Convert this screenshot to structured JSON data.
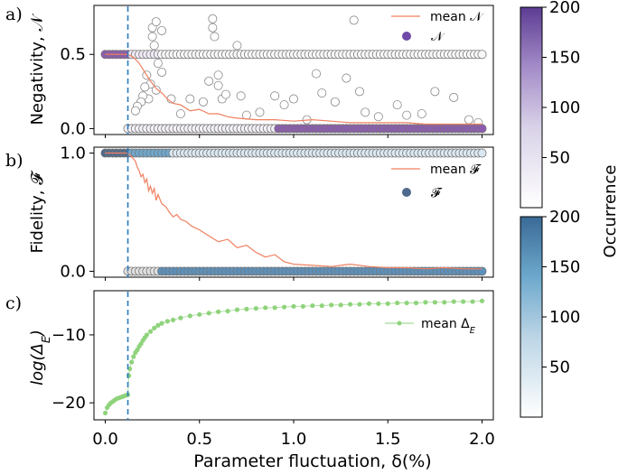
{
  "figure": {
    "xlabel": "Parameter fluctuation, δ(%)",
    "x_ticks": [
      "0.0",
      "0.5",
      "1.0",
      "1.5",
      "2.0"
    ],
    "x_tick_values": [
      0.0,
      0.5,
      1.0,
      1.5,
      2.0
    ],
    "threshold_x": 0.12
  },
  "colorbars": {
    "label": "Occurrence",
    "purple": {
      "ticks": [
        "200",
        "150",
        "100",
        "50"
      ],
      "tick_values": [
        200,
        150,
        100,
        50
      ],
      "range": [
        0,
        200
      ],
      "colors": [
        "#ffffff",
        "#5c3c93"
      ]
    },
    "blue": {
      "ticks": [
        "200",
        "150",
        "100",
        "50"
      ],
      "tick_values": [
        200,
        150,
        100,
        50
      ],
      "range": [
        0,
        200
      ],
      "colors": [
        "#ffffff",
        "#3a6a96"
      ]
    }
  },
  "chart_data": [
    {
      "type": "scatter",
      "panel_label": "a)",
      "ylabel": "Negativity, 𝒩",
      "ylim": [
        -0.04,
        0.83
      ],
      "y_ticks": [
        "0.5",
        "0.0"
      ],
      "y_tick_values": [
        0.5,
        0.0
      ],
      "xlim": [
        -0.06,
        2.06
      ],
      "legend": [
        "mean 𝒩",
        "𝒩"
      ],
      "mean_series": {
        "name": "mean 𝒩",
        "color": "#f08060",
        "x": [
          0.0,
          0.04,
          0.08,
          0.12,
          0.15,
          0.18,
          0.21,
          0.24,
          0.27,
          0.3,
          0.33,
          0.36,
          0.4,
          0.45,
          0.5,
          0.55,
          0.6,
          0.65,
          0.7,
          0.8,
          0.9,
          1.0,
          1.1,
          1.2,
          1.3,
          1.4,
          1.5,
          1.6,
          1.7,
          1.8,
          1.9,
          2.0
        ],
        "y": [
          0.5,
          0.5,
          0.5,
          0.5,
          0.48,
          0.44,
          0.38,
          0.32,
          0.27,
          0.24,
          0.2,
          0.17,
          0.16,
          0.12,
          0.13,
          0.1,
          0.1,
          0.08,
          0.07,
          0.06,
          0.06,
          0.05,
          0.06,
          0.05,
          0.04,
          0.04,
          0.04,
          0.04,
          0.03,
          0.03,
          0.03,
          0.03
        ]
      },
      "upper_band_y": 0.5,
      "lower_band_y": 0.0,
      "scatter_outliers": [
        [
          0.25,
          0.62
        ],
        [
          0.25,
          0.68
        ],
        [
          0.27,
          0.72
        ],
        [
          0.26,
          0.56
        ],
        [
          0.28,
          0.44
        ],
        [
          0.24,
          0.3
        ],
        [
          0.27,
          0.26
        ],
        [
          0.23,
          0.2
        ],
        [
          0.3,
          0.38
        ],
        [
          0.3,
          0.66
        ],
        [
          0.22,
          0.36
        ],
        [
          0.21,
          0.28
        ],
        [
          0.2,
          0.22
        ],
        [
          0.19,
          0.18
        ],
        [
          0.17,
          0.15
        ],
        [
          0.16,
          0.12
        ],
        [
          0.35,
          0.2
        ],
        [
          0.4,
          0.1
        ],
        [
          0.45,
          0.2
        ],
        [
          0.52,
          0.18
        ],
        [
          0.55,
          0.32
        ],
        [
          0.57,
          0.74
        ],
        [
          0.57,
          0.68
        ],
        [
          0.58,
          0.62
        ],
        [
          0.6,
          0.36
        ],
        [
          0.6,
          0.29
        ],
        [
          0.62,
          0.2
        ],
        [
          0.64,
          0.23
        ],
        [
          0.7,
          0.56
        ],
        [
          0.72,
          0.22
        ],
        [
          0.75,
          0.09
        ],
        [
          0.82,
          0.11
        ],
        [
          0.9,
          0.22
        ],
        [
          0.95,
          0.16
        ],
        [
          1.0,
          0.2
        ],
        [
          1.05,
          0.5
        ],
        [
          1.07,
          0.06
        ],
        [
          1.12,
          0.37
        ],
        [
          1.15,
          0.24
        ],
        [
          1.22,
          0.18
        ],
        [
          1.28,
          0.34
        ],
        [
          1.32,
          0.73
        ],
        [
          1.35,
          0.25
        ],
        [
          1.38,
          0.11
        ],
        [
          1.45,
          0.08
        ],
        [
          1.55,
          0.16
        ],
        [
          1.6,
          0.09
        ],
        [
          1.68,
          0.1
        ],
        [
          1.75,
          0.25
        ],
        [
          1.85,
          0.21
        ],
        [
          1.93,
          0.06
        ],
        [
          1.98,
          0.04
        ]
      ]
    },
    {
      "type": "scatter",
      "panel_label": "b)",
      "ylabel": "Fidelity, 𝓕",
      "ylim": [
        -0.05,
        1.05
      ],
      "y_ticks": [
        "1.0",
        "0.0"
      ],
      "y_tick_values": [
        1.0,
        0.0
      ],
      "xlim": [
        -0.06,
        2.06
      ],
      "legend": [
        "mean 𝓕",
        "𝓕"
      ],
      "mean_series": {
        "name": "mean 𝓕",
        "color": "#f08060",
        "x": [
          0.0,
          0.04,
          0.08,
          0.12,
          0.13,
          0.14,
          0.15,
          0.16,
          0.17,
          0.18,
          0.19,
          0.2,
          0.21,
          0.22,
          0.23,
          0.24,
          0.25,
          0.26,
          0.27,
          0.28,
          0.3,
          0.32,
          0.34,
          0.36,
          0.38,
          0.4,
          0.43,
          0.46,
          0.5,
          0.55,
          0.6,
          0.65,
          0.7,
          0.75,
          0.8,
          0.85,
          0.9,
          0.95,
          1.0,
          1.1,
          1.2,
          1.3,
          1.4,
          1.5,
          1.6,
          1.7,
          1.8,
          1.9,
          2.0
        ],
        "y": [
          1.0,
          1.0,
          1.0,
          1.0,
          0.99,
          0.97,
          0.95,
          0.93,
          0.88,
          0.85,
          0.8,
          0.82,
          0.75,
          0.78,
          0.68,
          0.72,
          0.66,
          0.7,
          0.6,
          0.65,
          0.57,
          0.55,
          0.5,
          0.46,
          0.48,
          0.44,
          0.42,
          0.38,
          0.35,
          0.3,
          0.25,
          0.27,
          0.2,
          0.22,
          0.16,
          0.12,
          0.14,
          0.08,
          0.06,
          0.05,
          0.04,
          0.06,
          0.04,
          0.03,
          0.03,
          0.02,
          0.03,
          0.02,
          0.02
        ]
      },
      "upper_band_y": 1.0,
      "lower_band_y": 0.0
    },
    {
      "type": "line",
      "panel_label": "c)",
      "ylabel": "log(Δ_E)",
      "ylim": [
        -22.5,
        -3.5
      ],
      "y_ticks": [
        "−10",
        "−20"
      ],
      "y_tick_values": [
        -10,
        -20
      ],
      "xlim": [
        -0.06,
        2.06
      ],
      "legend": [
        "mean Δ_E"
      ],
      "series": [
        {
          "name": "mean Δ_E",
          "color": "#8fd37c",
          "x": [
            0.0,
            0.01,
            0.02,
            0.03,
            0.04,
            0.05,
            0.06,
            0.07,
            0.08,
            0.09,
            0.1,
            0.11,
            0.12,
            0.125,
            0.13,
            0.14,
            0.15,
            0.16,
            0.17,
            0.18,
            0.19,
            0.2,
            0.21,
            0.22,
            0.24,
            0.26,
            0.28,
            0.3,
            0.33,
            0.36,
            0.4,
            0.45,
            0.5,
            0.55,
            0.6,
            0.65,
            0.7,
            0.75,
            0.8,
            0.85,
            0.9,
            0.95,
            1.0,
            1.05,
            1.1,
            1.15,
            1.2,
            1.25,
            1.3,
            1.35,
            1.4,
            1.45,
            1.5,
            1.55,
            1.6,
            1.65,
            1.7,
            1.75,
            1.8,
            1.85,
            1.9,
            1.95,
            2.0
          ],
          "y": [
            -21.5,
            -20.7,
            -20.3,
            -20.0,
            -19.8,
            -19.6,
            -19.4,
            -19.3,
            -19.2,
            -19.1,
            -19.0,
            -18.9,
            -18.8,
            -16.0,
            -15.0,
            -14.0,
            -13.2,
            -12.6,
            -12.2,
            -11.7,
            -11.3,
            -10.8,
            -10.4,
            -10.0,
            -9.5,
            -9.0,
            -8.6,
            -8.3,
            -8.0,
            -7.8,
            -7.5,
            -7.2,
            -7.0,
            -6.8,
            -6.6,
            -6.5,
            -6.3,
            -6.2,
            -6.1,
            -6.0,
            -6.0,
            -5.9,
            -5.8,
            -5.8,
            -5.7,
            -5.7,
            -5.6,
            -5.6,
            -5.5,
            -5.5,
            -5.4,
            -5.4,
            -5.4,
            -5.3,
            -5.3,
            -5.3,
            -5.2,
            -5.2,
            -5.2,
            -5.1,
            -5.1,
            -5.1,
            -5.0
          ]
        }
      ]
    }
  ]
}
